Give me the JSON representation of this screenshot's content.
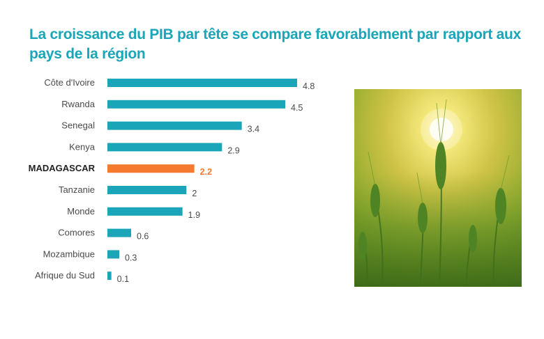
{
  "title": "La croissance du PIB par tête se compare favorablement par rapport aux pays de la région",
  "colors": {
    "title": "#1aa5b8",
    "bar": "#1aa5b8",
    "highlight": "#f47a30"
  },
  "chart_data": {
    "type": "bar",
    "orientation": "horizontal",
    "title": "La croissance du PIB par tête se compare favorablement par rapport aux pays de la région",
    "categories": [
      "Côte d'Ivoire",
      "Rwanda",
      "Senegal",
      "Kenya",
      "MADAGASCAR",
      "Tanzanie",
      "Monde",
      "Comores",
      "Mozambique",
      "Afrique du Sud"
    ],
    "values": [
      4.8,
      4.5,
      3.4,
      2.9,
      2.2,
      2,
      1.9,
      0.6,
      0.3,
      0.1
    ],
    "value_labels": [
      "4.8",
      "4.5",
      "3.4",
      "2.9",
      "2.2",
      "2",
      "1.9",
      "0.6",
      "0.3",
      "0.1"
    ],
    "highlight": "MADAGASCAR",
    "xlim": [
      0,
      4.8
    ],
    "grid": false,
    "xlabel": "",
    "ylabel": ""
  },
  "image": {
    "icon": "wheat-field-sunset-photo"
  }
}
